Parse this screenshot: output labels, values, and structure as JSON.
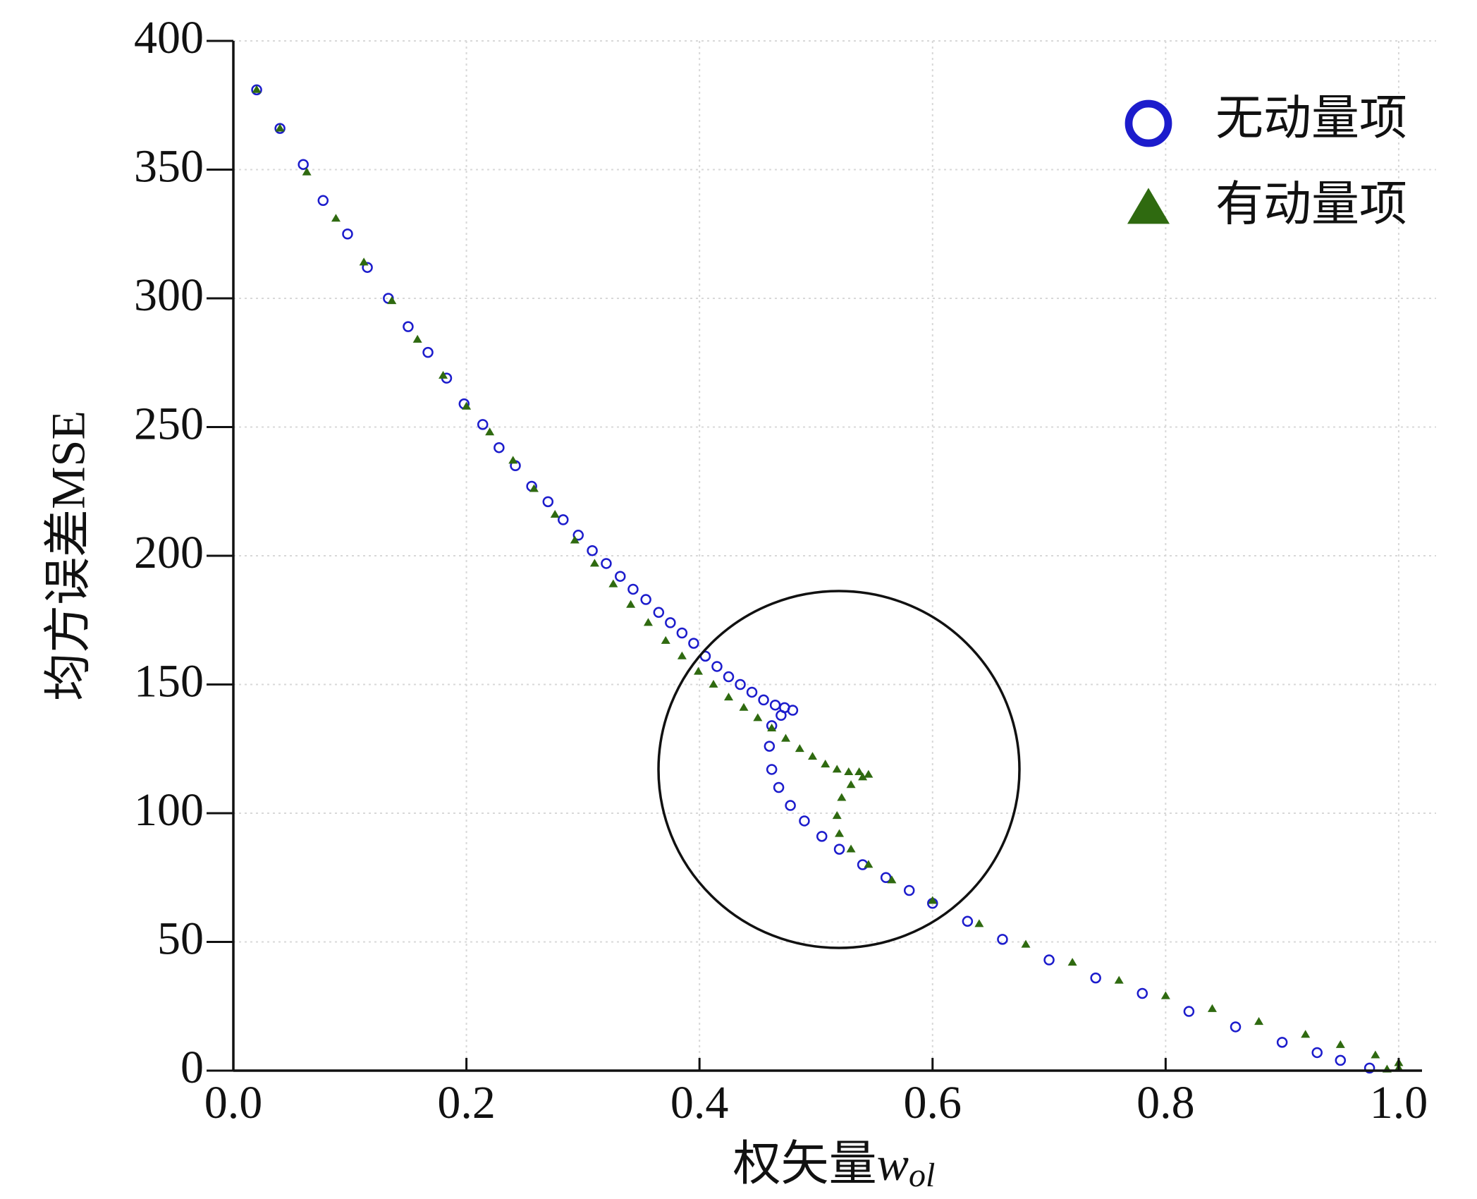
{
  "chart_data": {
    "type": "scatter",
    "x_label": "权矢量",
    "x_label_var": "w",
    "x_label_sub": "ol",
    "y_label": "均方误差MSE",
    "xlim": [
      0,
      1.02
    ],
    "ylim": [
      0,
      400
    ],
    "xticks": [
      {
        "value": 0,
        "label": "0.0"
      },
      0.2,
      0.4,
      0.6,
      0.8,
      {
        "value": 1,
        "label": "1.0"
      }
    ],
    "yticks": [
      0,
      50,
      100,
      150,
      200,
      250,
      300,
      350,
      400
    ],
    "grid": true,
    "legend": "upper right",
    "series": [
      {
        "name": "无动量项",
        "color": "#1c1ccc",
        "marker": "circle-open",
        "x": [
          0.02,
          0.04,
          0.06,
          0.077,
          0.098,
          0.115,
          0.133,
          0.15,
          0.167,
          0.183,
          0.198,
          0.214,
          0.228,
          0.242,
          0.256,
          0.27,
          0.283,
          0.296,
          0.308,
          0.32,
          0.332,
          0.343,
          0.354,
          0.365,
          0.375,
          0.385,
          0.395,
          0.405,
          0.415,
          0.425,
          0.435,
          0.445,
          0.455,
          0.465,
          0.473,
          0.48,
          0.47,
          0.462,
          0.46,
          0.462,
          0.468,
          0.478,
          0.49,
          0.505,
          0.52,
          0.54,
          0.56,
          0.58,
          0.6,
          0.63,
          0.66,
          0.7,
          0.74,
          0.78,
          0.82,
          0.86,
          0.9,
          0.93,
          0.95,
          0.975
        ],
        "values": [
          381,
          366,
          352,
          338,
          325,
          312,
          300,
          289,
          279,
          269,
          259,
          251,
          242,
          235,
          227,
          221,
          214,
          208,
          202,
          197,
          192,
          187,
          183,
          178,
          174,
          170,
          166,
          161,
          157,
          153,
          150,
          147,
          144,
          142,
          141,
          140,
          138,
          134,
          126,
          117,
          110,
          103,
          97,
          91,
          86,
          80,
          75,
          70,
          65,
          58,
          51,
          43,
          36,
          30,
          23,
          17,
          11,
          7,
          4,
          1
        ]
      },
      {
        "name": "有动量项",
        "color": "#2f6a10",
        "marker": "triangle",
        "x": [
          0.02,
          0.04,
          0.063,
          0.088,
          0.112,
          0.136,
          0.158,
          0.18,
          0.2,
          0.22,
          0.24,
          0.258,
          0.276,
          0.293,
          0.31,
          0.326,
          0.341,
          0.356,
          0.371,
          0.385,
          0.399,
          0.412,
          0.425,
          0.438,
          0.45,
          0.462,
          0.474,
          0.486,
          0.497,
          0.508,
          0.518,
          0.528,
          0.537,
          0.545,
          0.54,
          0.53,
          0.522,
          0.518,
          0.52,
          0.53,
          0.545,
          0.565,
          0.6,
          0.64,
          0.68,
          0.72,
          0.76,
          0.8,
          0.84,
          0.88,
          0.92,
          0.95,
          0.98,
          1.0,
          1.0,
          0.99
        ],
        "values": [
          381,
          366,
          349,
          331,
          314,
          299,
          284,
          270,
          258,
          248,
          237,
          226,
          216,
          206,
          197,
          189,
          181,
          174,
          167,
          161,
          155,
          150,
          145,
          141,
          137,
          133,
          129,
          125,
          122,
          119,
          117,
          116,
          116,
          115,
          114,
          111,
          106,
          99,
          92,
          86,
          80,
          74,
          66,
          57,
          49,
          42,
          35,
          29,
          24,
          19,
          14,
          10,
          6,
          3,
          1,
          0.5
        ]
      }
    ]
  }
}
